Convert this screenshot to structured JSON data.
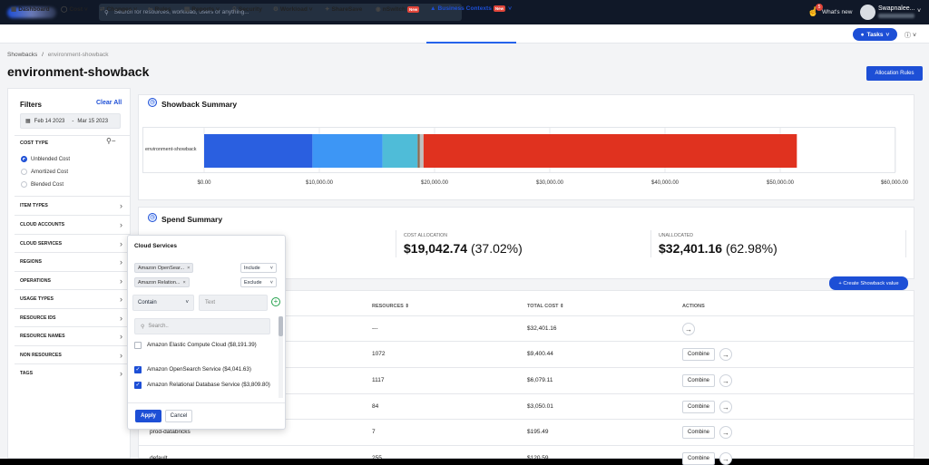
{
  "topbar": {
    "search_placeholder": "Search for resources, workload, users or anything...",
    "notification_count": "5",
    "whats_new": "What's new",
    "user_name": "Swapnalee..."
  },
  "nav": {
    "items": [
      {
        "label": "Dashboard",
        "icon": "grid-icon"
      },
      {
        "label": "Cost ˅",
        "icon": "dollar-icon"
      },
      {
        "label": "Changes ˅",
        "icon": "changes-icon"
      },
      {
        "label": "Rules",
        "icon": "rules-icon"
      },
      {
        "label": "Reports ˅",
        "icon": "report-icon"
      },
      {
        "label": "Security",
        "icon": "lock-icon"
      },
      {
        "label": "Workload ˅",
        "icon": "workload-icon"
      },
      {
        "label": "ShareSave",
        "icon": "sharesave-icon"
      },
      {
        "label": "nSwitch",
        "icon": "switch-icon",
        "badge": "New"
      },
      {
        "label": "Business Contexts",
        "icon": "business-icon",
        "badge": "New",
        "active": true
      }
    ],
    "tasks_label": "Tasks"
  },
  "breadcrumb": {
    "root": "Showbacks",
    "sep": "/",
    "current": "environment-showback"
  },
  "page_title": "environment-showback",
  "allocation_rules_label": "Allocation Rules",
  "filters": {
    "title": "Filters",
    "clear_all": "Clear All",
    "date_from": "Feb 14 2023",
    "date_sep": "-",
    "date_to": "Mar 15 2023",
    "cost_type_header": "COST TYPE",
    "cost_types": [
      {
        "label": "Unblended Cost",
        "selected": true
      },
      {
        "label": "Amortized Cost",
        "selected": false
      },
      {
        "label": "Blended Cost",
        "selected": false
      }
    ],
    "sections": [
      "ITEM TYPES",
      "CLOUD ACCOUNTS",
      "CLOUD SERVICES",
      "REGIONS",
      "OPERATIONS",
      "USAGE TYPES",
      "RESOURCE IDS",
      "RESOURCE NAMES",
      "NON RESOURCES",
      "TAGS"
    ]
  },
  "showback_summary": {
    "title": "Showback Summary",
    "row_label": "environment-showback"
  },
  "chart_data": {
    "type": "bar",
    "orientation": "horizontal-stacked",
    "categories": [
      "environment-showback"
    ],
    "series": [
      {
        "values": [
          9400.44
        ],
        "color": "#2a5fe0"
      },
      {
        "values": [
          6079.11
        ],
        "color": "#3d96f5"
      },
      {
        "values": [
          3050.01
        ],
        "color": "#4fbcd8"
      },
      {
        "values": [
          195.49
        ],
        "color": "#8b6a52"
      },
      {
        "values": [
          317.69
        ],
        "color": "#bfbfbf"
      },
      {
        "values": [
          32401.16
        ],
        "color": "#e0321f"
      }
    ],
    "xlim": [
      0,
      60000
    ],
    "x_ticks": [
      "$0.00",
      "$10,000.00",
      "$20,000.00",
      "$30,000.00",
      "$40,000.00",
      "$50,000.00",
      "$60,000.00"
    ],
    "grid": true
  },
  "spend_summary": {
    "title": "Spend Summary",
    "cost_allocation_caption": "COST ALLOCATION",
    "cost_allocation_value": "$19,042.74",
    "cost_allocation_pct": "(37.02%)",
    "unallocated_caption": "UNALLOCATED",
    "unallocated_value": "$32,401.16",
    "unallocated_pct": "(62.98%)"
  },
  "create_showback_label": "+ Create Showback value",
  "table": {
    "headers": {
      "resources": "RESOURCES ⇕",
      "total_cost": "TOTAL COST ⇕",
      "actions": "ACTIONS"
    },
    "combine_label": "Combine",
    "rows": [
      {
        "name": "",
        "resources": "---",
        "total_cost": "$32,401.16",
        "combine": false
      },
      {
        "name": "",
        "resources": "1072",
        "total_cost": "$9,400.44",
        "combine": true
      },
      {
        "name": "",
        "resources": "1117",
        "total_cost": "$6,079.11",
        "combine": true
      },
      {
        "name": "",
        "resources": "84",
        "total_cost": "$3,050.01",
        "combine": true
      },
      {
        "name": "prod-databricks",
        "resources": "7",
        "total_cost": "$195.49",
        "combine": true
      },
      {
        "name": "default",
        "resources": "255",
        "total_cost": "$120.59",
        "combine": true
      }
    ]
  },
  "cloud_services_popup": {
    "title": "Cloud Services",
    "chips": [
      {
        "label": "Amazon OpenSear...",
        "mode": "Include"
      },
      {
        "label": "Amazon Relation...",
        "mode": "Exclude"
      }
    ],
    "match_mode": "Contain",
    "text_placeholder": "Text",
    "search_placeholder": "Search..",
    "options": [
      {
        "label": "Amazon Elastic Compute Cloud ($8,191.39)",
        "checked": false
      },
      {
        "label": "Amazon OpenSearch Service ($4,041.63)",
        "checked": true
      },
      {
        "label": "Amazon Relational Database Service ($3,809.80)",
        "checked": true
      }
    ],
    "apply_label": "Apply",
    "cancel_label": "Cancel"
  }
}
